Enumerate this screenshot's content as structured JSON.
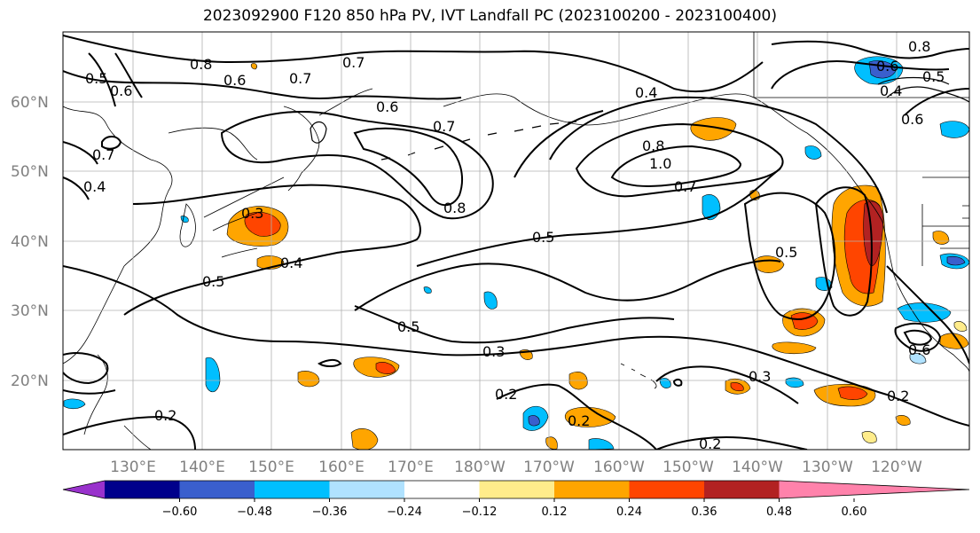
{
  "title": "2023092900 F120 850 hPa PV, IVT Landfall PC (2023100200 - 2023100400)",
  "lat_labels": [
    "60°N",
    "50°N",
    "40°N",
    "30°N",
    "20°N"
  ],
  "lon_labels": [
    "130°E",
    "140°E",
    "150°E",
    "160°E",
    "170°E",
    "180°W",
    "170°W",
    "160°W",
    "150°W",
    "140°W",
    "130°W",
    "120°W"
  ],
  "colorbar": {
    "ticks": [
      "−0.60",
      "−0.48",
      "−0.36",
      "−0.24",
      "−0.12",
      "0.12",
      "0.24",
      "0.36",
      "0.48",
      "0.60"
    ],
    "colors": [
      "#9932CC",
      "#00008B",
      "#3A5FCD",
      "#00BFFF",
      "#B0E2FF",
      "#FFFFFF",
      "#FFEC8B",
      "#FFA500",
      "#FF4500",
      "#B22222",
      "#FF82AB"
    ]
  },
  "contour_labels": [
    "0.8",
    "0.7",
    "0.6",
    "0.5",
    "0.4",
    "0.3",
    "0.2",
    "1.0"
  ]
}
